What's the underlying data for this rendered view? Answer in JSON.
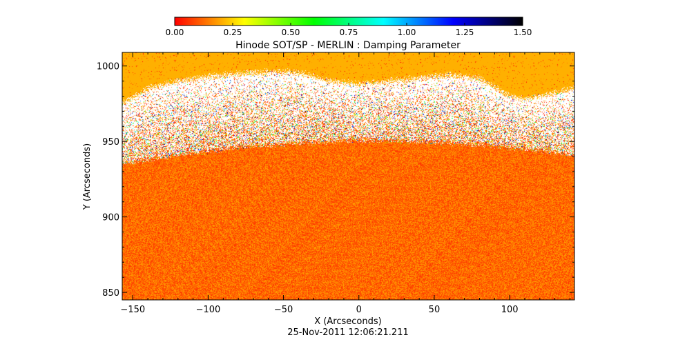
{
  "chart_data": {
    "type": "heatmap",
    "title": "Hinode SOT/SP - MERLIN : Damping Parameter",
    "xlabel": "X (Arcseconds)",
    "ylabel": "Y (Arcseconds)",
    "xlim": [
      -157,
      143
    ],
    "ylim": [
      845,
      1009
    ],
    "xticks": [
      -150,
      -100,
      -50,
      0,
      50,
      100
    ],
    "xtick_labels": [
      "−150",
      "−100",
      "−50",
      "0",
      "50",
      "100"
    ],
    "yticks": [
      850,
      900,
      950,
      1000
    ],
    "ytick_labels": [
      "850",
      "900",
      "950",
      "1000"
    ],
    "colorbar": {
      "range": [
        0,
        1.5
      ],
      "ticks": [
        0,
        0.25,
        0.5,
        0.75,
        1.0,
        1.25,
        1.5
      ],
      "tick_labels": [
        "0.00",
        "0.25",
        "0.50",
        "0.75",
        "1.00",
        "1.25",
        "1.50"
      ],
      "colormap": [
        "#ff0000",
        "#ffff00",
        "#00ff00",
        "#00ffff",
        "#0000ff",
        "#000000"
      ]
    },
    "regions": {
      "disk_value_range": [
        0.05,
        0.2
      ],
      "off_limb_fill_color": "#ffb000",
      "no_data_color": "#ffffff"
    },
    "limb_profile": {
      "x": [
        -157,
        -120,
        -80,
        -40,
        0,
        40,
        80,
        120,
        143
      ],
      "y": [
        935,
        941,
        946,
        949,
        951,
        950,
        948,
        944,
        941
      ]
    },
    "off_limb_profile": {
      "x": [
        -157,
        -140,
        -120,
        -100,
        -80,
        -60,
        -40,
        -20,
        0,
        20,
        40,
        60,
        80,
        100,
        110,
        120,
        143
      ],
      "y": [
        975,
        985,
        990,
        993,
        995,
        996,
        996,
        990,
        988,
        990,
        992,
        994,
        992,
        980,
        978,
        980,
        985
      ]
    },
    "timestamp": "25-Nov-2011 12:06:21.211"
  }
}
